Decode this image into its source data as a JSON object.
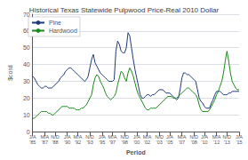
{
  "chart_data": {
    "type": "line",
    "title": "Historical Texas Statewide Pulpwood Price-Real 2010 Dollar",
    "xlabel": "Period",
    "ylabel": "$cord",
    "categories": [
      "J/A\n'85",
      null,
      null,
      null,
      null,
      null,
      null,
      "M/A\n'87",
      null,
      null,
      null,
      null,
      null,
      "N/D\n'88",
      null,
      null,
      null,
      null,
      null,
      null,
      "J/A\n'90",
      null,
      null,
      null,
      null,
      null,
      "M/A\n'92",
      null,
      null,
      null,
      null,
      null,
      null,
      "N/D\n'93",
      null,
      null,
      null,
      null,
      null,
      null,
      "J/A\n'95",
      null,
      null,
      null,
      null,
      null,
      "M/A\n'97",
      null,
      null,
      null,
      null,
      null,
      null,
      "N/D\n'98",
      null,
      null,
      null,
      null,
      null,
      null,
      "J/A\n'00",
      null,
      null,
      null,
      null,
      null,
      "M/A\n'02",
      null,
      null,
      null,
      null,
      null,
      null,
      "N/D\n'03",
      null,
      null,
      null,
      null,
      null,
      "J/A\n'05",
      null,
      null,
      null,
      null,
      null,
      null,
      "M/A\n'07",
      null,
      null,
      null,
      null,
      null,
      null,
      "N/D\n'08",
      null,
      null,
      null,
      null,
      null,
      "J/A\n'10",
      null,
      null,
      null,
      null,
      null,
      null,
      "M/A\n'12",
      null,
      null,
      null,
      null,
      null,
      "N/D\n'13",
      null,
      null,
      null,
      null,
      null,
      null,
      "J/A\n'15"
    ],
    "series": [
      {
        "name": "Pine",
        "color": "#1f3a7a",
        "values": [
          33,
          32,
          30,
          28,
          27,
          26,
          26,
          27,
          27,
          26,
          26,
          26,
          27,
          28,
          29,
          30,
          32,
          33,
          34,
          36,
          37,
          38,
          38,
          37,
          36,
          35,
          34,
          33,
          32,
          31,
          30,
          31,
          33,
          38,
          43,
          46,
          41,
          39,
          37,
          35,
          34,
          33,
          32,
          31,
          30,
          30,
          30,
          31,
          48,
          54,
          52,
          48,
          47,
          47,
          50,
          59,
          57,
          50,
          43,
          37,
          32,
          27,
          22,
          20,
          20,
          21,
          22,
          22,
          21,
          22,
          22,
          23,
          24,
          25,
          25,
          25,
          24,
          23,
          23,
          23,
          22,
          21,
          20,
          19,
          20,
          25,
          32,
          35,
          35,
          34,
          34,
          33,
          32,
          31,
          30,
          25,
          20,
          18,
          17,
          15,
          14,
          14,
          14,
          17,
          19,
          22,
          24,
          24,
          24,
          23,
          22,
          22,
          22,
          23,
          23,
          24,
          24,
          24,
          24,
          24
        ]
      },
      {
        "name": "Hardwood",
        "color": "#1a8a1a",
        "values": [
          8,
          8,
          9,
          10,
          11,
          12,
          12,
          12,
          12,
          11,
          11,
          10,
          10,
          11,
          12,
          13,
          14,
          15,
          15,
          15,
          15,
          14,
          14,
          14,
          14,
          13,
          13,
          13,
          14,
          14,
          15,
          16,
          18,
          20,
          22,
          28,
          32,
          34,
          33,
          30,
          28,
          26,
          23,
          21,
          20,
          19,
          20,
          21,
          23,
          28,
          32,
          36,
          35,
          32,
          30,
          35,
          38,
          36,
          33,
          29,
          25,
          22,
          20,
          18,
          16,
          14,
          13,
          13,
          14,
          14,
          14,
          14,
          15,
          16,
          17,
          18,
          19,
          20,
          21,
          21,
          21,
          20,
          20,
          20,
          21,
          22,
          23,
          24,
          25,
          26,
          26,
          25,
          24,
          23,
          22,
          20,
          16,
          13,
          12,
          12,
          12,
          12,
          13,
          15,
          17,
          19,
          22,
          24,
          27,
          30,
          35,
          42,
          48,
          42,
          35,
          30,
          28,
          26,
          25,
          25
        ]
      }
    ],
    "ylim": [
      0,
      70
    ],
    "yticks": [
      0,
      10,
      20,
      30,
      40,
      50,
      60,
      70
    ],
    "grid": true,
    "legend": "upper left"
  }
}
